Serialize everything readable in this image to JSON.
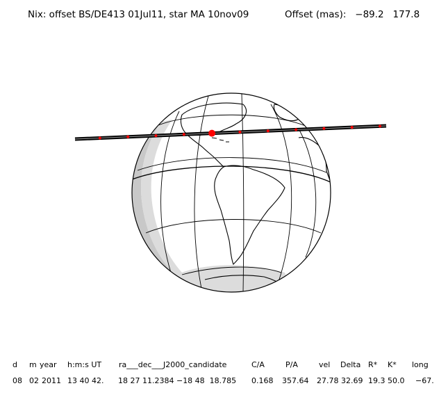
{
  "header": {
    "title": "Nix: offset BS/DE413 01Jul11, star MA 10nov09",
    "offset_label": "Offset (mas):",
    "offset_x": "−89.2",
    "offset_y": "177.8"
  },
  "map": {
    "projection": "orthographic",
    "shadow_color": "#c8c8c8",
    "track_color": "#000000",
    "marker_color": "#ff0000",
    "marker_count": 11,
    "central_marker_index": 4
  },
  "table": {
    "headers": [
      "d",
      "m",
      "year",
      "h:m:s UT",
      "ra___dec___J2000_candidate",
      "C/A",
      "P/A",
      "vel",
      "Delta",
      "R*",
      "K*",
      "long"
    ],
    "values": [
      "08",
      "02",
      "2011",
      "13 40 42.",
      "18 27 11.2384 −18 48  18.785",
      "0.168",
      "357.64",
      "27.78",
      "32.69",
      "19.3",
      "50.0",
      "−67."
    ]
  }
}
